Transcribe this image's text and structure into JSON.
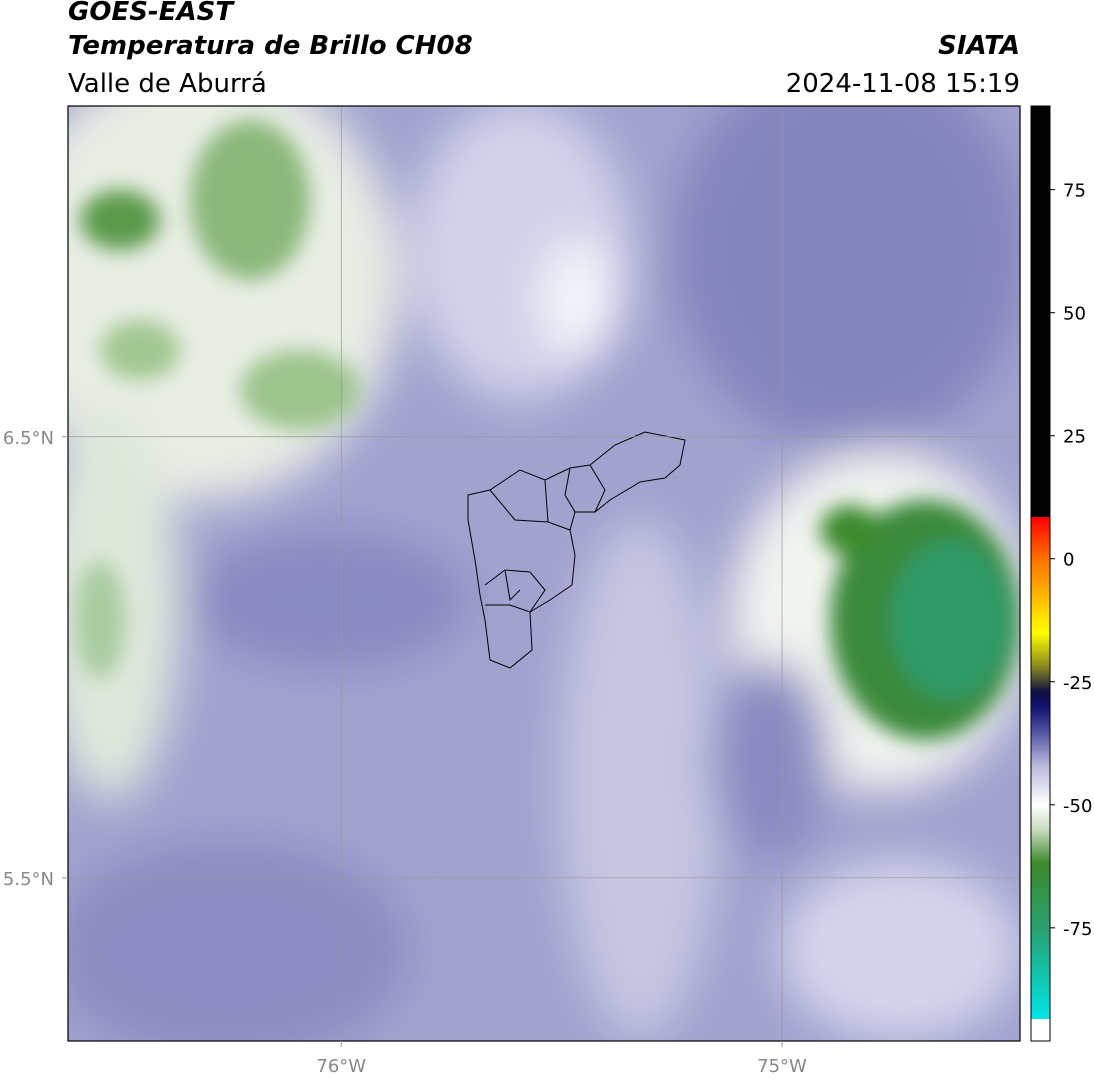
{
  "header": {
    "title": "GOES-EAST",
    "subtitle": "Temperatura de Brillo CH08",
    "region": "Valle de Aburrá",
    "source": "SIATA",
    "datetime": "2024-11-08 15:19"
  },
  "map": {
    "xlim": [
      -76.62,
      -74.46
    ],
    "ylim": [
      5.13,
      7.25
    ],
    "xticks": [
      {
        "value": -76,
        "label": "76°W"
      },
      {
        "value": -75,
        "label": "75°W"
      }
    ],
    "yticks": [
      {
        "value": 6.5,
        "label": "6.5°N"
      },
      {
        "value": 5.5,
        "label": "5.5°N"
      }
    ],
    "grid": true
  },
  "colorbar": {
    "lim": [
      -98,
      92
    ],
    "ticks": [
      75,
      50,
      25,
      0,
      -25,
      -50,
      -75
    ],
    "colors": [
      {
        "value": -98,
        "color": "#ffffff"
      },
      {
        "value": -93.5,
        "color": "#ffffff"
      },
      {
        "value": -93.5,
        "color": "#00e5e5"
      },
      {
        "value": -75,
        "color": "#2aa070"
      },
      {
        "value": -62,
        "color": "#3a8a2a"
      },
      {
        "value": -55,
        "color": "#c8dcc0"
      },
      {
        "value": -50,
        "color": "#ffffff"
      },
      {
        "value": -42,
        "color": "#b8b8dc"
      },
      {
        "value": -35,
        "color": "#5050a0"
      },
      {
        "value": -30,
        "color": "#101070"
      },
      {
        "value": -27,
        "color": "#101040"
      },
      {
        "value": -22,
        "color": "#888820"
      },
      {
        "value": -15,
        "color": "#ffff00"
      },
      {
        "value": -5,
        "color": "#ffa000"
      },
      {
        "value": 0,
        "color": "#ff7000"
      },
      {
        "value": 8.5,
        "color": "#ff0000"
      },
      {
        "value": 8.5,
        "color": "#000000"
      },
      {
        "value": 92,
        "color": "#000000"
      }
    ]
  }
}
